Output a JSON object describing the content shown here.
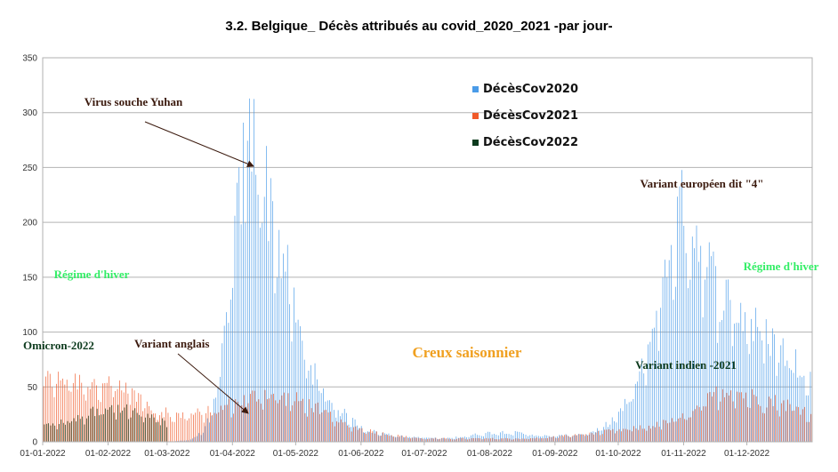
{
  "chart_data": {
    "type": "bar",
    "title": "3.2. Belgique_ Décès attribués au covid_2020_2021 -par jour-",
    "xlabel": "",
    "ylabel": "",
    "ylim": [
      0,
      350
    ],
    "yticks": [
      0,
      50,
      100,
      150,
      200,
      250,
      300,
      350
    ],
    "x_tick_labels": [
      "01-01-2022",
      "01-02-2022",
      "01-03-2022",
      "01-04-2022",
      "01-05-2022",
      "01-06-2022",
      "01-07-2022",
      "01-08-2022",
      "01-09-2022",
      "01-10-2022",
      "01-11-2022",
      "01-12-2022"
    ],
    "grid": "horizontal",
    "legend_position": "top-center",
    "series": [
      {
        "name": "DécèsCov2020",
        "color": "#4a9be8",
        "keypoints": [
          [
            0,
            0
          ],
          [
            60,
            0
          ],
          [
            70,
            2
          ],
          [
            75,
            8
          ],
          [
            80,
            25
          ],
          [
            84,
            60
          ],
          [
            88,
            130
          ],
          [
            92,
            200
          ],
          [
            95,
            250
          ],
          [
            97,
            300
          ],
          [
            99,
            280
          ],
          [
            102,
            270
          ],
          [
            105,
            240
          ],
          [
            110,
            200
          ],
          [
            115,
            160
          ],
          [
            120,
            110
          ],
          [
            125,
            80
          ],
          [
            130,
            55
          ],
          [
            135,
            40
          ],
          [
            140,
            30
          ],
          [
            145,
            22
          ],
          [
            150,
            15
          ],
          [
            155,
            10
          ],
          [
            160,
            8
          ],
          [
            170,
            5
          ],
          [
            180,
            4
          ],
          [
            190,
            3
          ],
          [
            200,
            5
          ],
          [
            210,
            8
          ],
          [
            220,
            9
          ],
          [
            230,
            7
          ],
          [
            240,
            5
          ],
          [
            250,
            6
          ],
          [
            260,
            8
          ],
          [
            265,
            12
          ],
          [
            270,
            20
          ],
          [
            275,
            30
          ],
          [
            280,
            45
          ],
          [
            285,
            70
          ],
          [
            290,
            110
          ],
          [
            295,
            150
          ],
          [
            298,
            185
          ],
          [
            302,
            210
          ],
          [
            306,
            205
          ],
          [
            310,
            190
          ],
          [
            315,
            165
          ],
          [
            320,
            140
          ],
          [
            325,
            130
          ],
          [
            330,
            120
          ],
          [
            335,
            110
          ],
          [
            340,
            100
          ],
          [
            345,
            95
          ],
          [
            350,
            85
          ],
          [
            355,
            75
          ],
          [
            360,
            70
          ],
          [
            365,
            60
          ]
        ]
      },
      {
        "name": "DécèsCov2021",
        "color": "#f05a2a",
        "keypoints": [
          [
            0,
            55
          ],
          [
            10,
            60
          ],
          [
            20,
            55
          ],
          [
            30,
            50
          ],
          [
            40,
            48
          ],
          [
            50,
            35
          ],
          [
            55,
            28
          ],
          [
            60,
            25
          ],
          [
            65,
            24
          ],
          [
            70,
            25
          ],
          [
            80,
            28
          ],
          [
            90,
            35
          ],
          [
            95,
            38
          ],
          [
            100,
            42
          ],
          [
            105,
            45
          ],
          [
            110,
            42
          ],
          [
            115,
            40
          ],
          [
            120,
            38
          ],
          [
            125,
            35
          ],
          [
            130,
            30
          ],
          [
            135,
            25
          ],
          [
            140,
            18
          ],
          [
            150,
            12
          ],
          [
            160,
            8
          ],
          [
            170,
            5
          ],
          [
            180,
            3
          ],
          [
            190,
            3
          ],
          [
            200,
            3
          ],
          [
            210,
            3
          ],
          [
            220,
            3
          ],
          [
            230,
            3
          ],
          [
            240,
            4
          ],
          [
            250,
            6
          ],
          [
            260,
            8
          ],
          [
            270,
            10
          ],
          [
            280,
            12
          ],
          [
            290,
            15
          ],
          [
            300,
            20
          ],
          [
            310,
            28
          ],
          [
            315,
            38
          ],
          [
            320,
            45
          ],
          [
            325,
            50
          ],
          [
            330,
            45
          ],
          [
            335,
            42
          ],
          [
            340,
            40
          ],
          [
            345,
            38
          ],
          [
            350,
            35
          ],
          [
            355,
            33
          ],
          [
            360,
            30
          ],
          [
            365,
            25
          ]
        ]
      },
      {
        "name": "DécèsCov2022",
        "color": "#0d3b1e",
        "keypoints": [
          [
            0,
            15
          ],
          [
            10,
            18
          ],
          [
            15,
            22
          ],
          [
            20,
            25
          ],
          [
            25,
            30
          ],
          [
            30,
            32
          ],
          [
            35,
            30
          ],
          [
            40,
            28
          ],
          [
            45,
            25
          ],
          [
            50,
            22
          ],
          [
            55,
            20
          ],
          [
            58,
            15
          ]
        ]
      }
    ],
    "annotations": [
      {
        "text": "Virus souche Yuhan",
        "color": "#3b1a0e"
      },
      {
        "text": "Régime d'hiver",
        "color": "#33ee66"
      },
      {
        "text": "Régime d'hiver",
        "color": "#33ee66"
      },
      {
        "text": "Omicron-2022",
        "color": "#0d3b1e"
      },
      {
        "text": "Variant anglais",
        "color": "#3b1a0e"
      },
      {
        "text": "Creux saisonnier",
        "color": "#f0a020"
      },
      {
        "text": "Variant européen dit \"4\"",
        "color": "#3b1a0e"
      },
      {
        "text": "Variant indien -2021",
        "color": "#0d3b1e"
      }
    ]
  }
}
